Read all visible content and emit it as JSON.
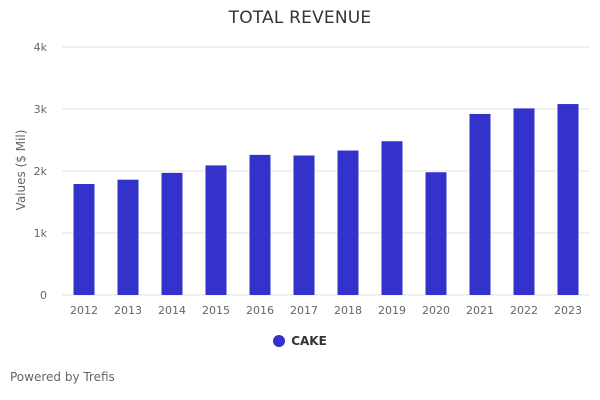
{
  "chart_data": {
    "type": "bar",
    "title": "TOTAL REVENUE",
    "xlabel": "",
    "ylabel": "Values ($ Mil)",
    "categories": [
      "2012",
      "2013",
      "2014",
      "2015",
      "2016",
      "2017",
      "2018",
      "2019",
      "2020",
      "2021",
      "2022",
      "2023"
    ],
    "series": [
      {
        "name": "CAKE",
        "color": "#3333cc",
        "values": [
          1790,
          1860,
          1970,
          2090,
          2260,
          2250,
          2330,
          2480,
          1980,
          2920,
          3010,
          3080
        ]
      }
    ],
    "ylim": [
      0,
      4000
    ],
    "yticks": [
      0,
      1000,
      2000,
      3000,
      4000
    ],
    "ytick_labels": [
      "0",
      "1k",
      "2k",
      "3k",
      "4k"
    ],
    "grid": true,
    "legend_position": "bottom-center"
  },
  "footer": {
    "credit": "Powered by Trefis"
  }
}
